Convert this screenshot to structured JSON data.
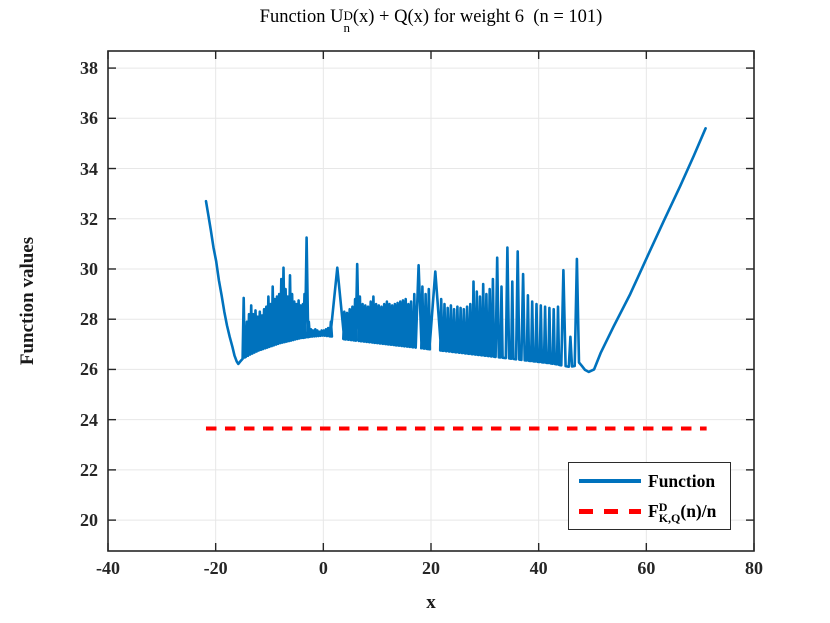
{
  "figure": {
    "title": {
      "pre": "Function U",
      "sup": "D",
      "sub": "n",
      "post": "(x) + Q(x) for weight 6  (n = 101)"
    },
    "xlabel": "x",
    "ylabel": "Function values"
  },
  "legend": {
    "entries": [
      {
        "label": "Function",
        "style": "solid",
        "color": "#0072BD"
      },
      {
        "pre": "F",
        "sup": "D",
        "sub": "K,Q",
        "post": "(n)/n",
        "style": "dashed",
        "color": "#FF0000"
      }
    ]
  },
  "colors": {
    "line_blue": "#0072BD",
    "line_red": "#FF0000",
    "axis": "#262626",
    "grid": "#E7E7E7",
    "text": "#000000",
    "background": "#FFFFFF"
  },
  "chart_data": {
    "type": "line",
    "title": "Function U_n^D(x) + Q(x) for weight 6  (n = 101)",
    "xlabel": "x",
    "ylabel": "Function values",
    "xlim": [
      -40,
      80
    ],
    "ylim": [
      18.77,
      38.68
    ],
    "xticks": [
      -40,
      -20,
      0,
      20,
      40,
      60,
      80
    ],
    "yticks": [
      20,
      22,
      24,
      26,
      28,
      30,
      32,
      34,
      36,
      38
    ],
    "grid": true,
    "legend_position": "south-east",
    "series": [
      {
        "name": "Function",
        "color": "#0072BD",
        "style": "solid",
        "left_arm": [
          [
            -21.8,
            32.7
          ],
          [
            -21.4,
            32.2
          ],
          [
            -20.9,
            31.55
          ],
          [
            -20.4,
            30.85
          ],
          [
            -19.9,
            30.3
          ],
          [
            -19.4,
            29.55
          ],
          [
            -18.9,
            28.95
          ],
          [
            -18.4,
            28.3
          ],
          [
            -17.9,
            27.75
          ],
          [
            -17.4,
            27.3
          ],
          [
            -16.9,
            26.9
          ],
          [
            -16.5,
            26.55
          ],
          [
            -16.1,
            26.32
          ],
          [
            -15.8,
            26.22
          ],
          [
            -15.5,
            26.3
          ]
        ],
        "baseline": [
          [
            -15.5,
            26.3
          ],
          [
            -15.2,
            26.4
          ],
          [
            -14.4,
            26.5
          ],
          [
            -13.5,
            26.6
          ],
          [
            -12,
            26.75
          ],
          [
            -10,
            26.9
          ],
          [
            -8,
            27.05
          ],
          [
            -6,
            27.15
          ],
          [
            -4,
            27.25
          ],
          [
            -2.5,
            27.3
          ],
          [
            0,
            27.35
          ],
          [
            2,
            27.3
          ],
          [
            4,
            27.2
          ],
          [
            6,
            27.15
          ],
          [
            8,
            27.1
          ],
          [
            10,
            27.05
          ],
          [
            12,
            27.0
          ],
          [
            14,
            26.95
          ],
          [
            16,
            26.9
          ],
          [
            18,
            26.85
          ],
          [
            20,
            26.8
          ],
          [
            22,
            26.75
          ],
          [
            24,
            26.7
          ],
          [
            26,
            26.65
          ],
          [
            28,
            26.6
          ],
          [
            30,
            26.55
          ],
          [
            32,
            26.5
          ],
          [
            34,
            26.45
          ],
          [
            36,
            26.4
          ],
          [
            38,
            26.35
          ],
          [
            40,
            26.3
          ],
          [
            42,
            26.25
          ],
          [
            43.5,
            26.2
          ],
          [
            44.5,
            26.15
          ],
          [
            45.8,
            26.1
          ],
          [
            47,
            26.15
          ],
          [
            47.6,
            26.3
          ]
        ],
        "spikes": [
          [
            -14.8,
            28.85
          ],
          [
            -14.2,
            27.9
          ],
          [
            -13.8,
            28.2
          ],
          [
            -13.4,
            28.55
          ],
          [
            -13.0,
            28.2
          ],
          [
            -12.6,
            28.35
          ],
          [
            -12.2,
            28.1
          ],
          [
            -11.8,
            28.3
          ],
          [
            -11.4,
            28.15
          ],
          [
            -11.0,
            28.4
          ],
          [
            -10.6,
            28.5
          ],
          [
            -10.2,
            28.9
          ],
          [
            -9.8,
            28.6
          ],
          [
            -9.4,
            29.3
          ],
          [
            -9.0,
            28.8
          ],
          [
            -8.6,
            28.9
          ],
          [
            -8.2,
            29.0
          ],
          [
            -7.8,
            29.6
          ],
          [
            -7.4,
            30.05
          ],
          [
            -7.0,
            29.2
          ],
          [
            -6.6,
            28.9
          ],
          [
            -6.2,
            29.75
          ],
          [
            -5.8,
            29.0
          ],
          [
            -5.4,
            28.7
          ],
          [
            -5.0,
            28.6
          ],
          [
            -4.6,
            28.75
          ],
          [
            -4.2,
            28.55
          ],
          [
            -3.8,
            28.6
          ],
          [
            -3.5,
            29.0
          ],
          [
            -3.1,
            31.25,
            0.28
          ],
          [
            -2.7,
            27.9
          ],
          [
            -2.3,
            27.6
          ],
          [
            -1.9,
            27.55
          ],
          [
            -1.5,
            27.6
          ],
          [
            -1.1,
            27.55
          ],
          [
            -0.7,
            27.5
          ],
          [
            -0.3,
            27.55
          ],
          [
            0.1,
            27.55
          ],
          [
            0.5,
            27.6
          ],
          [
            0.9,
            27.65
          ],
          [
            1.4,
            27.9
          ],
          [
            2.6,
            30.05,
            1.3
          ],
          [
            3.9,
            28.3
          ],
          [
            4.4,
            28.25
          ],
          [
            4.9,
            28.4
          ],
          [
            5.4,
            28.5
          ],
          [
            5.9,
            28.8
          ],
          [
            6.3,
            30.2,
            0.28
          ],
          [
            6.8,
            28.9
          ],
          [
            7.3,
            28.6
          ],
          [
            7.8,
            28.55
          ],
          [
            8.3,
            28.5
          ],
          [
            8.8,
            28.7
          ],
          [
            9.3,
            28.9
          ],
          [
            9.8,
            28.6
          ],
          [
            10.3,
            28.55
          ],
          [
            10.8,
            28.5
          ],
          [
            11.3,
            28.6
          ],
          [
            11.8,
            28.7
          ],
          [
            12.3,
            28.6
          ],
          [
            12.8,
            28.55
          ],
          [
            13.3,
            28.6
          ],
          [
            13.8,
            28.65
          ],
          [
            14.3,
            28.7
          ],
          [
            14.8,
            28.75
          ],
          [
            15.3,
            28.8
          ],
          [
            15.8,
            28.6
          ],
          [
            16.3,
            28.7
          ],
          [
            16.9,
            29.0
          ],
          [
            17.7,
            30.15,
            0.55
          ],
          [
            18.4,
            29.3
          ],
          [
            19.0,
            29.0
          ],
          [
            19.6,
            29.2
          ],
          [
            20.8,
            29.9,
            1.1
          ],
          [
            21.9,
            28.8
          ],
          [
            22.5,
            28.6
          ],
          [
            23.1,
            28.45
          ],
          [
            23.7,
            28.55
          ],
          [
            24.3,
            28.4
          ],
          [
            24.9,
            28.5
          ],
          [
            25.5,
            28.45
          ],
          [
            26.1,
            28.4
          ],
          [
            26.7,
            28.5
          ],
          [
            27.3,
            28.6
          ],
          [
            27.9,
            29.5
          ],
          [
            28.5,
            29.1
          ],
          [
            29.1,
            28.9
          ],
          [
            29.7,
            29.4
          ],
          [
            30.3,
            29.0
          ],
          [
            30.9,
            29.2
          ],
          [
            31.5,
            29.6
          ],
          [
            32.3,
            30.45,
            0.3
          ],
          [
            33.1,
            29.3
          ],
          [
            34.2,
            30.85,
            0.3
          ],
          [
            35.1,
            29.5
          ],
          [
            36.1,
            30.7,
            0.3
          ],
          [
            37.1,
            29.8,
            0.3
          ],
          [
            38.0,
            28.95
          ],
          [
            38.8,
            28.7
          ],
          [
            39.6,
            28.6
          ],
          [
            40.4,
            28.55
          ],
          [
            41.2,
            28.5
          ],
          [
            42.0,
            28.45
          ],
          [
            42.8,
            28.4
          ],
          [
            43.6,
            28.5
          ],
          [
            44.6,
            29.95,
            0.4
          ],
          [
            45.9,
            27.3,
            0.3
          ],
          [
            47.1,
            30.4,
            0.4
          ]
        ],
        "right_arm": [
          [
            48.0,
            26.15
          ],
          [
            48.6,
            25.98
          ],
          [
            49.3,
            25.9
          ],
          [
            50.3,
            26.0
          ],
          [
            51.5,
            26.65
          ],
          [
            53.9,
            27.7
          ],
          [
            57.0,
            29.0
          ],
          [
            60.2,
            30.5
          ],
          [
            63.2,
            31.9
          ],
          [
            66.3,
            33.3
          ],
          [
            68.8,
            34.5
          ],
          [
            71.0,
            35.6
          ]
        ]
      },
      {
        "name": "F_K,Q^D(n)/n",
        "color": "#FF0000",
        "style": "dashed",
        "y": 23.65,
        "x_start": -21.8,
        "x_end": 71.2
      }
    ]
  }
}
